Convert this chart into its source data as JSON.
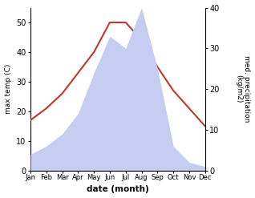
{
  "months": [
    "Jan",
    "Feb",
    "Mar",
    "Apr",
    "May",
    "Jun",
    "Jul",
    "Aug",
    "Sep",
    "Oct",
    "Nov",
    "Dec"
  ],
  "month_indices": [
    0,
    1,
    2,
    3,
    4,
    5,
    6,
    7,
    8,
    9,
    10,
    11
  ],
  "temperature": [
    17,
    21,
    26,
    33,
    40,
    50,
    50,
    44,
    35,
    27,
    21,
    15
  ],
  "precipitation": [
    4,
    6,
    9,
    14,
    24,
    33,
    30,
    40,
    25,
    6,
    2,
    1
  ],
  "temp_color": "#c0392b",
  "precip_fill_color": "#c5cef0",
  "ylabel_left": "max temp (C)",
  "ylabel_right": "med. precipitation\n(kg/m2)",
  "xlabel": "date (month)",
  "ylim_left": [
    0,
    55
  ],
  "ylim_right": [
    0,
    40
  ],
  "yticks_left": [
    0,
    10,
    20,
    30,
    40,
    50
  ],
  "yticks_right": [
    0,
    10,
    20,
    30,
    40
  ],
  "bg_color": "#ffffff",
  "line_width": 1.5
}
